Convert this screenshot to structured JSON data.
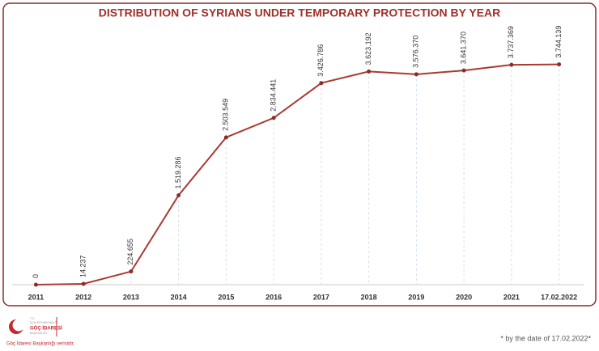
{
  "chart_data": {
    "type": "line",
    "title": "DISTRIBUTION OF SYRIANS UNDER TEMPORARY PROTECTION BY YEAR",
    "categories": [
      "2011",
      "2012",
      "2013",
      "2014",
      "2015",
      "2016",
      "2017",
      "2018",
      "2019",
      "2020",
      "2021",
      "17.02.2022"
    ],
    "series": [
      {
        "name": "Syrians under temporary protection",
        "color": "#a83a32",
        "values": [
          0,
          14237,
          224655,
          1519286,
          2503549,
          2834441,
          3426786,
          3623192,
          3576370,
          3641370,
          3737369,
          3744139
        ],
        "value_labels": [
          "0",
          "14.237",
          "224.655",
          "1.519.286",
          "2.503.549",
          "2.834.441",
          "3.426.786",
          "3.623.192",
          "3.576.370",
          "3.641.370",
          "3.737.369",
          "3.744.139"
        ]
      }
    ],
    "ylim": [
      0,
      4000000
    ],
    "footnote": "* by the date of 17.02.2022*"
  },
  "logo": {
    "lines": [
      "T.C.",
      "İÇİŞLERİ BAKANLIĞI",
      "GÖÇ İDARESİ",
      "BAŞKANLIĞI"
    ],
    "caption": "Göç İdaresi Başkanlığı verisidir."
  }
}
